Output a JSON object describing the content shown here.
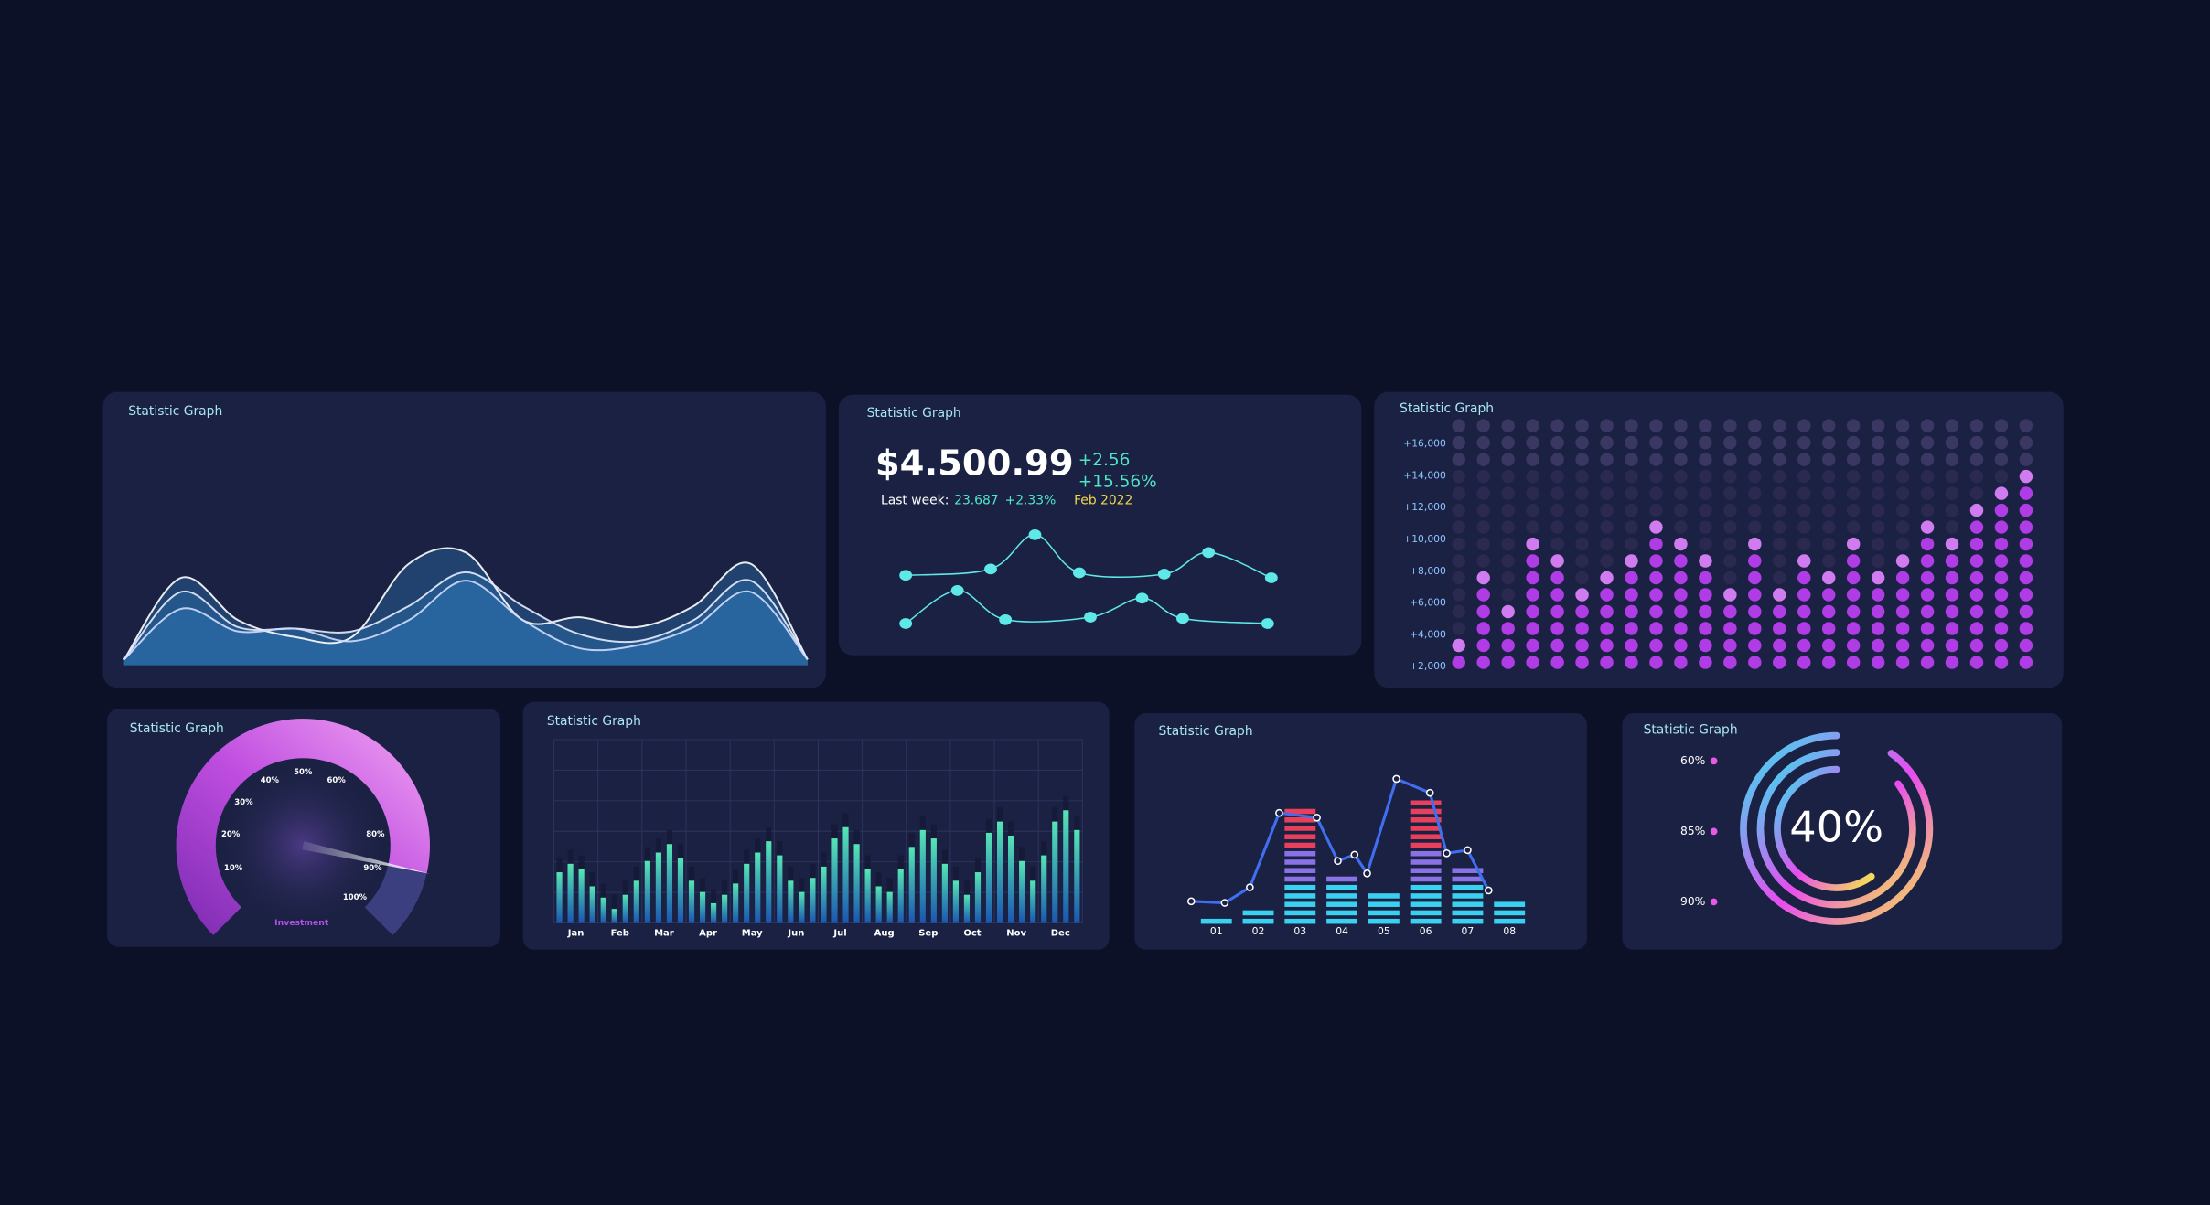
{
  "wave": {
    "title": "Statistic Graph",
    "ylim": [
      0,
      100
    ],
    "series": [
      {
        "color": "#ffffff",
        "values": [
          4,
          62,
          32,
          20,
          20,
          72,
          80,
          32,
          34,
          27,
          42,
          72,
          4
        ]
      },
      {
        "color": "#e6ecff",
        "values": [
          4,
          52,
          27,
          26,
          24,
          42,
          66,
          42,
          22,
          17,
          32,
          60,
          4
        ]
      },
      {
        "color": "#d0dcff",
        "values": [
          4,
          40,
          24,
          26,
          17,
          32,
          60,
          32,
          12,
          14,
          27,
          52,
          4
        ]
      }
    ],
    "fill": "#2f7fc0"
  },
  "price": {
    "title": "Statistic Graph",
    "amount": "$4.500.99",
    "change": "+2.56",
    "change_pct": "+15.56%",
    "last_week_label": "Last week:",
    "last_week_value": "23.687",
    "last_week_pct": "+2.33%",
    "date": "Feb 2022",
    "xlim": [
      0,
      100
    ],
    "ylim": [
      0,
      100
    ],
    "series": [
      {
        "color": "#5ee8e8",
        "x": [
          1,
          24,
          36,
          48,
          71,
          83,
          100
        ],
        "values": [
          52,
          57,
          84,
          54,
          53,
          70,
          50
        ]
      },
      {
        "color": "#5ee8e8",
        "x": [
          1,
          15,
          28,
          51,
          65,
          76,
          99
        ],
        "values": [
          14,
          40,
          17,
          19,
          34,
          18,
          14
        ]
      }
    ]
  },
  "dots": {
    "title": "Statistic Graph",
    "ylim": [
      1000,
      17500
    ],
    "color": "#b03ce6",
    "yticks": [
      {
        "value": 16000,
        "label": "+16,000"
      },
      {
        "value": 14000,
        "label": "+14,000"
      },
      {
        "value": 12000,
        "label": "+12,000"
      },
      {
        "value": 10000,
        "label": "+10,000"
      },
      {
        "value": 8000,
        "label": "+8,000"
      },
      {
        "value": 6000,
        "label": "+6,000"
      },
      {
        "value": 4000,
        "label": "+4,000"
      },
      {
        "value": 2000,
        "label": "+2,000"
      }
    ],
    "values": [
      3300,
      7600,
      5500,
      9800,
      8700,
      6500,
      7600,
      8700,
      10800,
      9800,
      8700,
      6500,
      9800,
      6500,
      8700,
      7600,
      9800,
      7600,
      8700,
      10800,
      9800,
      12000,
      13000,
      14000
    ]
  },
  "gauge": {
    "title": "Statistic Graph",
    "ylim": [
      0,
      100
    ],
    "value": 88,
    "caption": "Investment",
    "ticks": [
      {
        "value": 10,
        "label": "10%"
      },
      {
        "value": 20,
        "label": "20%"
      },
      {
        "value": 30,
        "label": "30%"
      },
      {
        "value": 40,
        "label": "40%"
      },
      {
        "value": 50,
        "label": "50%"
      },
      {
        "value": 60,
        "label": "60%"
      },
      {
        "value": 80,
        "label": "80%"
      },
      {
        "value": 90,
        "label": "90%"
      },
      {
        "value": 100,
        "label": "100%"
      }
    ]
  },
  "bars": {
    "title": "Statistic Graph",
    "ylim": [
      0,
      100
    ],
    "month_labels": [
      "Jan",
      "Feb",
      "Mar",
      "Apr",
      "May",
      "Jun",
      "Jul",
      "Aug",
      "Sep",
      "Oct",
      "Nov",
      "Dec"
    ],
    "values": [
      36,
      42,
      38,
      26,
      18,
      10,
      20,
      30,
      44,
      50,
      56,
      46,
      30,
      22,
      14,
      20,
      28,
      42,
      50,
      58,
      48,
      30,
      22,
      32,
      40,
      60,
      68,
      56,
      38,
      26,
      22,
      38,
      54,
      66,
      60,
      42,
      30,
      20,
      36,
      64,
      72,
      62,
      44,
      30,
      48,
      72,
      80,
      66
    ]
  },
  "equalizer": {
    "title": "Statistic Graph",
    "categories": [
      "01",
      "02",
      "03",
      "04",
      "05",
      "06",
      "07",
      "08"
    ],
    "xlim": [
      0,
      9
    ],
    "ylim": [
      0,
      100
    ],
    "values": [
      3,
      8,
      75,
      34,
      23,
      80,
      39,
      17
    ],
    "line": {
      "color": "#3f6ff0",
      "x": [
        0.4,
        1.2,
        1.8,
        2.5,
        3.4,
        3.9,
        4.3,
        4.6,
        5.3,
        6.1,
        6.5,
        7.0,
        7.5
      ],
      "values": [
        14,
        13,
        23,
        71,
        68,
        40,
        44,
        32,
        93,
        84,
        45,
        47,
        21
      ]
    }
  },
  "rings": {
    "title": "Statistic Graph",
    "center_label": "40%",
    "rings": [
      {
        "label": "60%",
        "value": 60
      },
      {
        "label": "85%",
        "value": 85
      },
      {
        "label": "90%",
        "value": 90
      }
    ]
  }
}
